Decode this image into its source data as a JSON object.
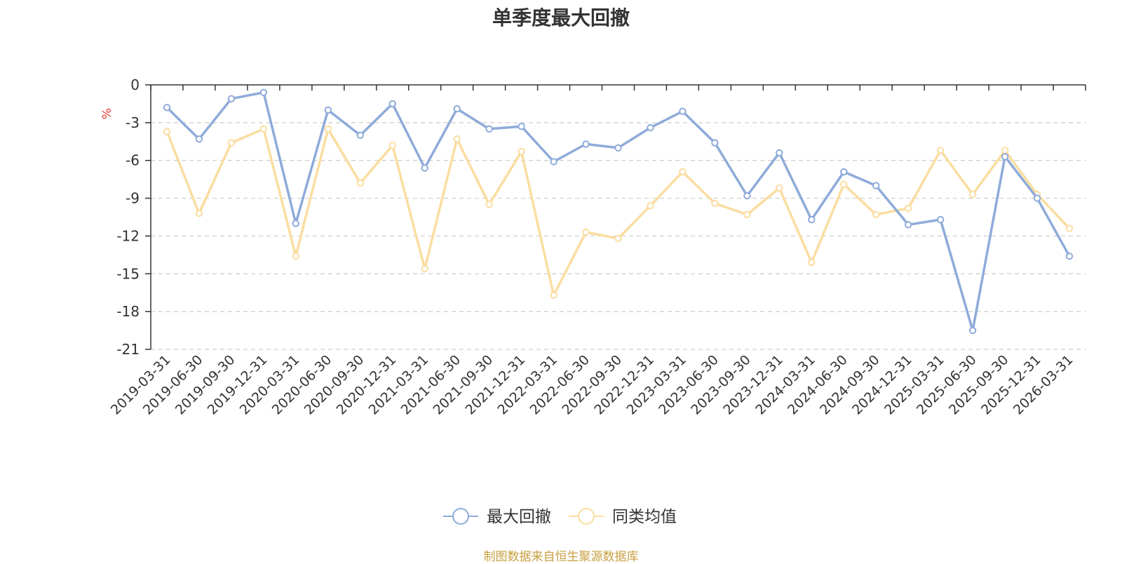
{
  "chart_data": {
    "type": "line",
    "title": "单季度最大回撤",
    "ylabel": "%",
    "ylim": [
      -21,
      0
    ],
    "yticks": [
      0,
      -3,
      -6,
      -9,
      -12,
      -15,
      -18,
      -21
    ],
    "grid": "horizontal dashed",
    "legend_position": "bottom-center",
    "categories": [
      "2019-03-31",
      "2019-06-30",
      "2019-09-30",
      "2019-12-31",
      "2020-03-31",
      "2020-06-30",
      "2020-09-30",
      "2020-12-31",
      "2021-03-31",
      "2021-06-30",
      "2021-09-30",
      "2021-12-31",
      "2022-03-31",
      "2022-06-30",
      "2022-09-30",
      "2022-12-31",
      "2023-03-31",
      "2023-06-30",
      "2023-09-30",
      "2023-12-31",
      "2024-03-31",
      "2024-06-30",
      "2024-09-30",
      "2024-12-31",
      "2025-03-31",
      "2025-06-30",
      "2025-09-30",
      "2025-12-31",
      "2026-03-31"
    ],
    "series": [
      {
        "name": "最大回撤",
        "color": "#8EABD9",
        "values": [
          -1.8,
          -4.3,
          -1.1,
          -0.6,
          -11.0,
          -2.0,
          -4.0,
          -1.5,
          -6.6,
          -1.9,
          -3.5,
          -3.3,
          -6.1,
          -4.7,
          -5.0,
          -3.4,
          -2.1,
          -4.6,
          -8.8,
          -5.4,
          -10.7,
          -6.9,
          -8.0,
          -11.1,
          -10.7,
          -19.5,
          -5.7,
          -9.0,
          -13.6
        ]
      },
      {
        "name": "同类均值",
        "color": "#FADDA0",
        "values": [
          -3.7,
          -10.2,
          -4.6,
          -3.5,
          -13.6,
          -3.5,
          -7.8,
          -4.8,
          -14.6,
          -4.3,
          -9.5,
          -5.3,
          -16.7,
          -11.7,
          -12.2,
          -9.6,
          -6.9,
          -9.4,
          -10.3,
          -8.2,
          -14.1,
          -7.9,
          -10.3,
          -9.8,
          -5.2,
          -8.7,
          -5.2,
          -8.7,
          -11.4
        ]
      }
    ]
  },
  "source_note": "制图数据来自恒生聚源数据库"
}
